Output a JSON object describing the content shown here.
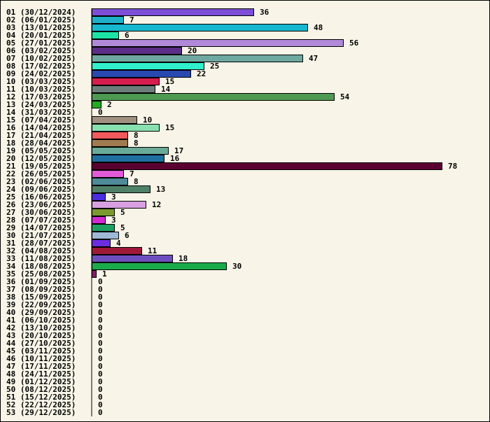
{
  "chart_data": {
    "type": "bar",
    "orientation": "horizontal",
    "title": "",
    "xlabel": "",
    "ylabel": "",
    "grid": false,
    "xlim": [
      0,
      78
    ],
    "categories": [
      "01 (30/12/2024)",
      "02 (06/01/2025)",
      "03 (13/01/2025)",
      "04 (20/01/2025)",
      "05 (27/01/2025)",
      "06 (03/02/2025)",
      "07 (10/02/2025)",
      "08 (17/02/2025)",
      "09 (24/02/2025)",
      "10 (03/03/2025)",
      "11 (10/03/2025)",
      "12 (17/03/2025)",
      "13 (24/03/2025)",
      "14 (31/03/2025)",
      "15 (07/04/2025)",
      "16 (14/04/2025)",
      "17 (21/04/2025)",
      "18 (28/04/2025)",
      "19 (05/05/2025)",
      "20 (12/05/2025)",
      "21 (19/05/2025)",
      "22 (26/05/2025)",
      "23 (02/06/2025)",
      "24 (09/06/2025)",
      "25 (16/06/2025)",
      "26 (23/06/2025)",
      "27 (30/06/2025)",
      "28 (07/07/2025)",
      "29 (14/07/2025)",
      "30 (21/07/2025)",
      "31 (28/07/2025)",
      "32 (04/08/2025)",
      "33 (11/08/2025)",
      "34 (18/08/2025)",
      "35 (25/08/2025)",
      "36 (01/09/2025)",
      "37 (08/09/2025)",
      "38 (15/09/2025)",
      "39 (22/09/2025)",
      "40 (29/09/2025)",
      "41 (06/10/2025)",
      "42 (13/10/2025)",
      "43 (20/10/2025)",
      "44 (27/10/2025)",
      "45 (03/11/2025)",
      "46 (10/11/2025)",
      "47 (17/11/2025)",
      "48 (24/11/2025)",
      "49 (01/12/2025)",
      "50 (08/12/2025)",
      "51 (15/12/2025)",
      "52 (22/12/2025)",
      "53 (29/12/2025)"
    ],
    "values": [
      36,
      7,
      48,
      6,
      56,
      20,
      47,
      25,
      22,
      15,
      14,
      54,
      2,
      0,
      10,
      15,
      8,
      8,
      17,
      16,
      78,
      7,
      8,
      13,
      3,
      12,
      5,
      3,
      5,
      6,
      4,
      11,
      18,
      30,
      1,
      0,
      0,
      0,
      0,
      0,
      0,
      0,
      0,
      0,
      0,
      0,
      0,
      0,
      0,
      0,
      0,
      0,
      0
    ],
    "colors": [
      "#7c4fd6",
      "#1fb0c8",
      "#17b7cf",
      "#1de2a6",
      "#b08ad8",
      "#5a2e86",
      "#6fa8a0",
      "#2ff0cc",
      "#2749b0",
      "#d61d4f",
      "#6d7d7a",
      "#4f9a52",
      "#22aa22",
      "#ffffff",
      "#a09080",
      "#88e0b0",
      "#f05a5a",
      "#a07a50",
      "#6aaa98",
      "#1f6fa0",
      "#5a0030",
      "#e25ad8",
      "#4f8a98",
      "#4f8068",
      "#4a2ee0",
      "#d8a0e0",
      "#7a9a30",
      "#d02ad0",
      "#1fa060",
      "#a0b8d8",
      "#6a2ee0",
      "#a01838",
      "#6f4fc0",
      "#1aaa4a",
      "#8a1a6a",
      "#ffffff",
      "#ffffff",
      "#ffffff",
      "#ffffff",
      "#ffffff",
      "#ffffff",
      "#ffffff",
      "#ffffff",
      "#ffffff",
      "#ffffff",
      "#ffffff",
      "#ffffff",
      "#ffffff",
      "#ffffff",
      "#ffffff",
      "#ffffff",
      "#ffffff",
      "#ffffff"
    ]
  }
}
